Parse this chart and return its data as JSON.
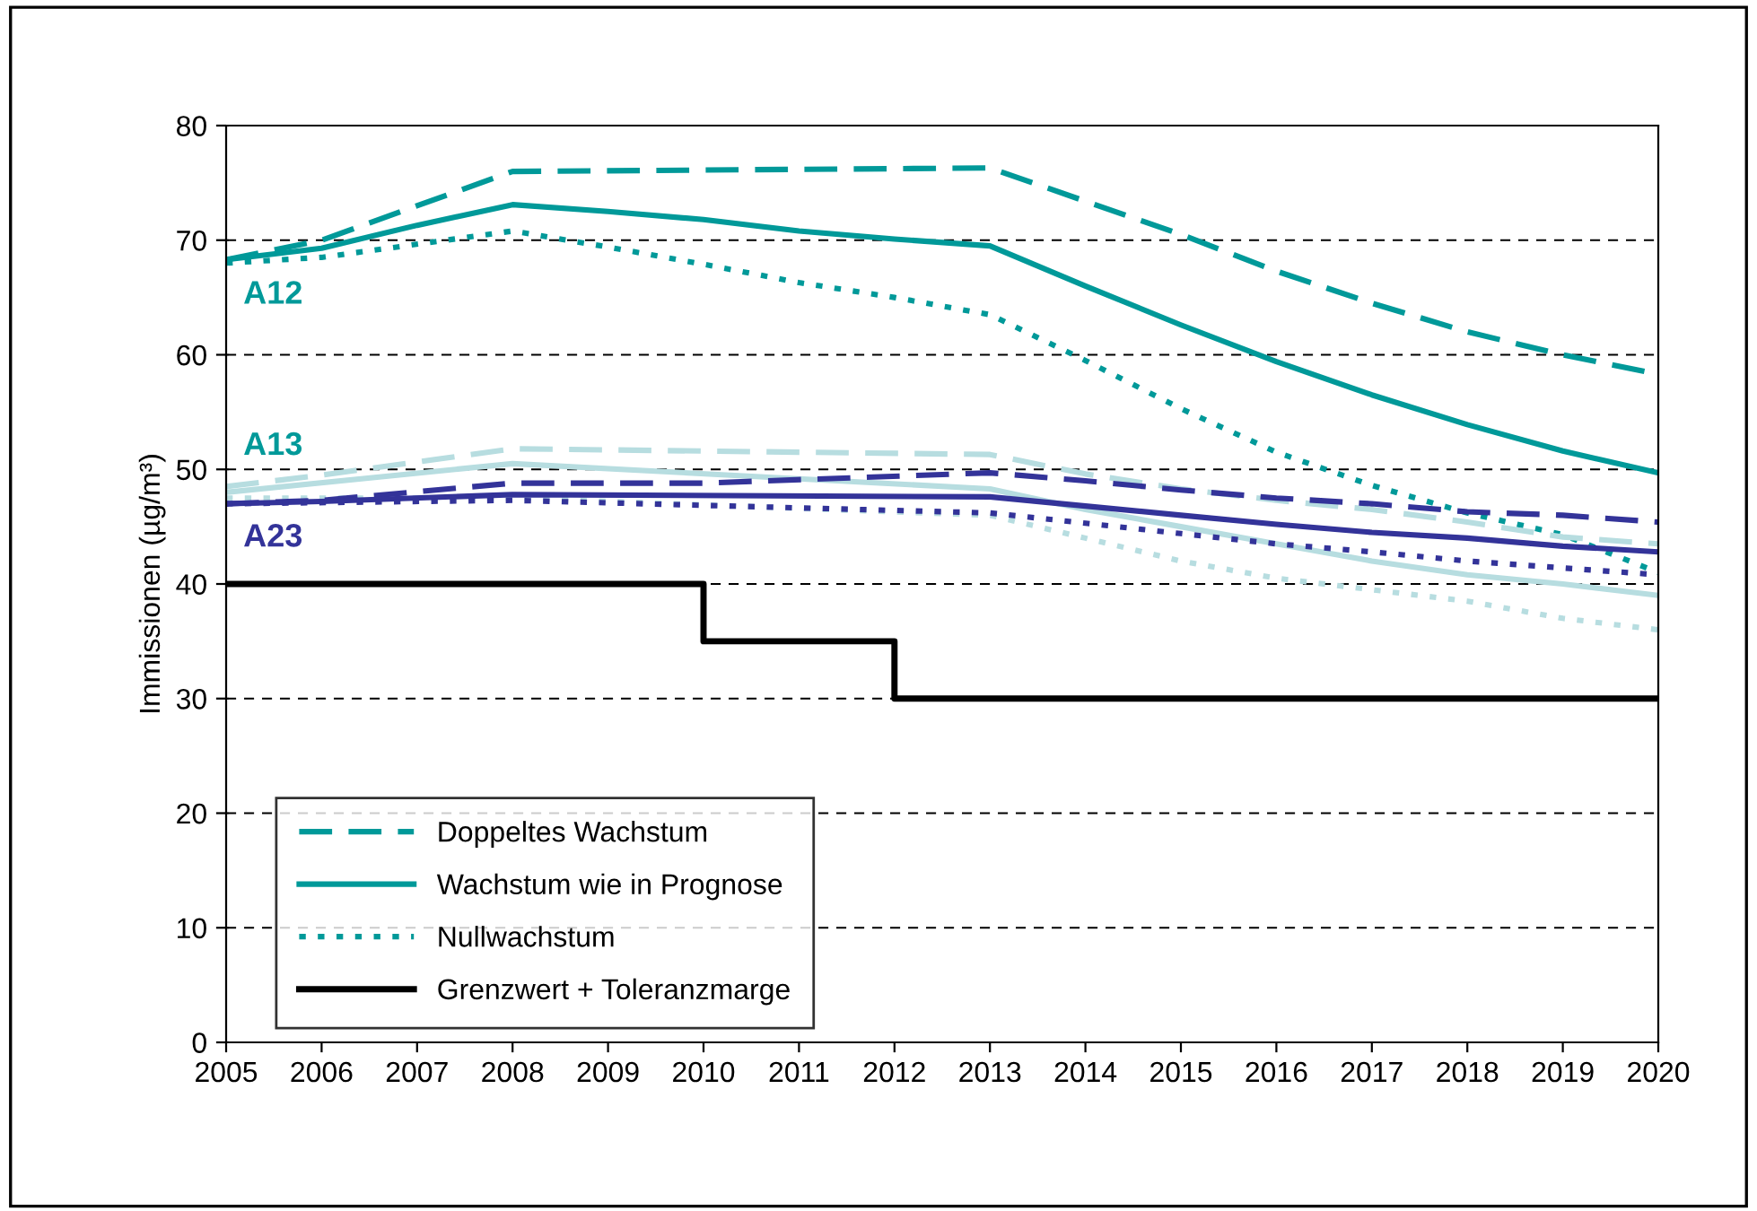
{
  "chart_data": {
    "type": "line",
    "ylabel": "Immissionen (µg/m³)",
    "xlim": [
      2005,
      2020
    ],
    "xticks": [
      2005,
      2006,
      2007,
      2008,
      2009,
      2010,
      2011,
      2012,
      2013,
      2014,
      2015,
      2016,
      2017,
      2018,
      2019,
      2020
    ],
    "ylim": [
      0,
      80
    ],
    "yticks": [
      0,
      10,
      20,
      30,
      40,
      50,
      60,
      70,
      80
    ],
    "grid": "y",
    "legend": "bottom left",
    "marker": "none",
    "annotations": [
      "A12",
      "A13",
      "A23"
    ],
    "series": [
      {
        "name": "Doppeltes Wachstum",
        "color": "#009999",
        "line_style": "dashed",
        "x": [
          2005,
          2006,
          2008,
          2013,
          2014,
          2015,
          2016,
          2017,
          2018,
          2019,
          2020
        ],
        "values": [
          68.3,
          70,
          76,
          76.3,
          73.4,
          70.5,
          67.3,
          64.5,
          62,
          60,
          58.3
        ]
      },
      {
        "name": "Wachstum wie in Prognose",
        "color": "#009999",
        "line_style": "solid",
        "x": [
          2005,
          2006,
          2007,
          2008,
          2009,
          2010,
          2011,
          2012,
          2013,
          2014,
          2015,
          2016,
          2017,
          2018,
          2019,
          2020
        ],
        "values": [
          68.3,
          69.3,
          71.3,
          73.1,
          72.5,
          71.8,
          70.8,
          70.1,
          69.5,
          66,
          62.6,
          59.4,
          56.5,
          53.9,
          51.6,
          49.7
        ]
      },
      {
        "name": "Nullwachstum",
        "color": "#009999",
        "line_style": "dotted",
        "x": [
          2005,
          2006,
          2008,
          2009,
          2010,
          2011,
          2012,
          2013,
          2014,
          2015,
          2016,
          2017,
          2018,
          2019,
          2020
        ],
        "values": [
          68,
          68.5,
          70.8,
          69.4,
          67.9,
          66.3,
          65,
          63.5,
          59.5,
          55.3,
          51.5,
          48.6,
          46.2,
          44.3,
          41
        ]
      },
      {
        "color": "#b7dde0",
        "line_style": "dashed",
        "x": [
          2005,
          2006,
          2008,
          2013,
          2014,
          2015,
          2016,
          2017,
          2018,
          2019,
          2020
        ],
        "values": [
          48.5,
          49.5,
          51.8,
          51.3,
          49.6,
          48.3,
          47.3,
          46.5,
          45.4,
          44.1,
          43.5
        ]
      },
      {
        "color": "#b7dde0",
        "line_style": "solid",
        "x": [
          2005,
          2008,
          2013,
          2014,
          2015,
          2016,
          2017,
          2018,
          2019,
          2020
        ],
        "values": [
          48,
          50.5,
          48.3,
          46.5,
          45,
          43.5,
          42,
          40.8,
          40,
          39
        ]
      },
      {
        "color": "#b7dde0",
        "line_style": "dotted",
        "x": [
          2005,
          2008,
          2013,
          2014,
          2015,
          2016,
          2017,
          2018,
          2019,
          2020
        ],
        "values": [
          47.5,
          47.5,
          46,
          44,
          42,
          40.5,
          39.5,
          38.5,
          37,
          36
        ]
      },
      {
        "color": "#333399",
        "line_style": "dashed",
        "x": [
          2005,
          2006,
          2008,
          2010,
          2013,
          2014,
          2015,
          2016,
          2017,
          2018,
          2019,
          2020
        ],
        "values": [
          47,
          47.3,
          48.8,
          48.8,
          49.7,
          49,
          48.2,
          47.5,
          47,
          46.3,
          46,
          45.4
        ]
      },
      {
        "color": "#333399",
        "line_style": "solid",
        "x": [
          2005,
          2006,
          2008,
          2013,
          2014,
          2015,
          2016,
          2017,
          2018,
          2019,
          2020
        ],
        "values": [
          47,
          47.2,
          47.8,
          47.6,
          46.8,
          46,
          45.2,
          44.5,
          44,
          43.3,
          42.8
        ]
      },
      {
        "color": "#333399",
        "line_style": "dotted",
        "x": [
          2005,
          2008,
          2013,
          2014,
          2015,
          2016,
          2017,
          2018,
          2019,
          2020
        ],
        "values": [
          47,
          47.3,
          46.2,
          45.3,
          44.4,
          43.5,
          42.8,
          42,
          41.4,
          40.8
        ]
      },
      {
        "name": "Grenzwert + Toleranzmarge",
        "type": "step",
        "color": "#000000",
        "line_style": "solid",
        "x": [
          2005,
          2010,
          2012,
          2020
        ],
        "values": [
          40,
          35,
          30,
          30
        ]
      }
    ]
  }
}
